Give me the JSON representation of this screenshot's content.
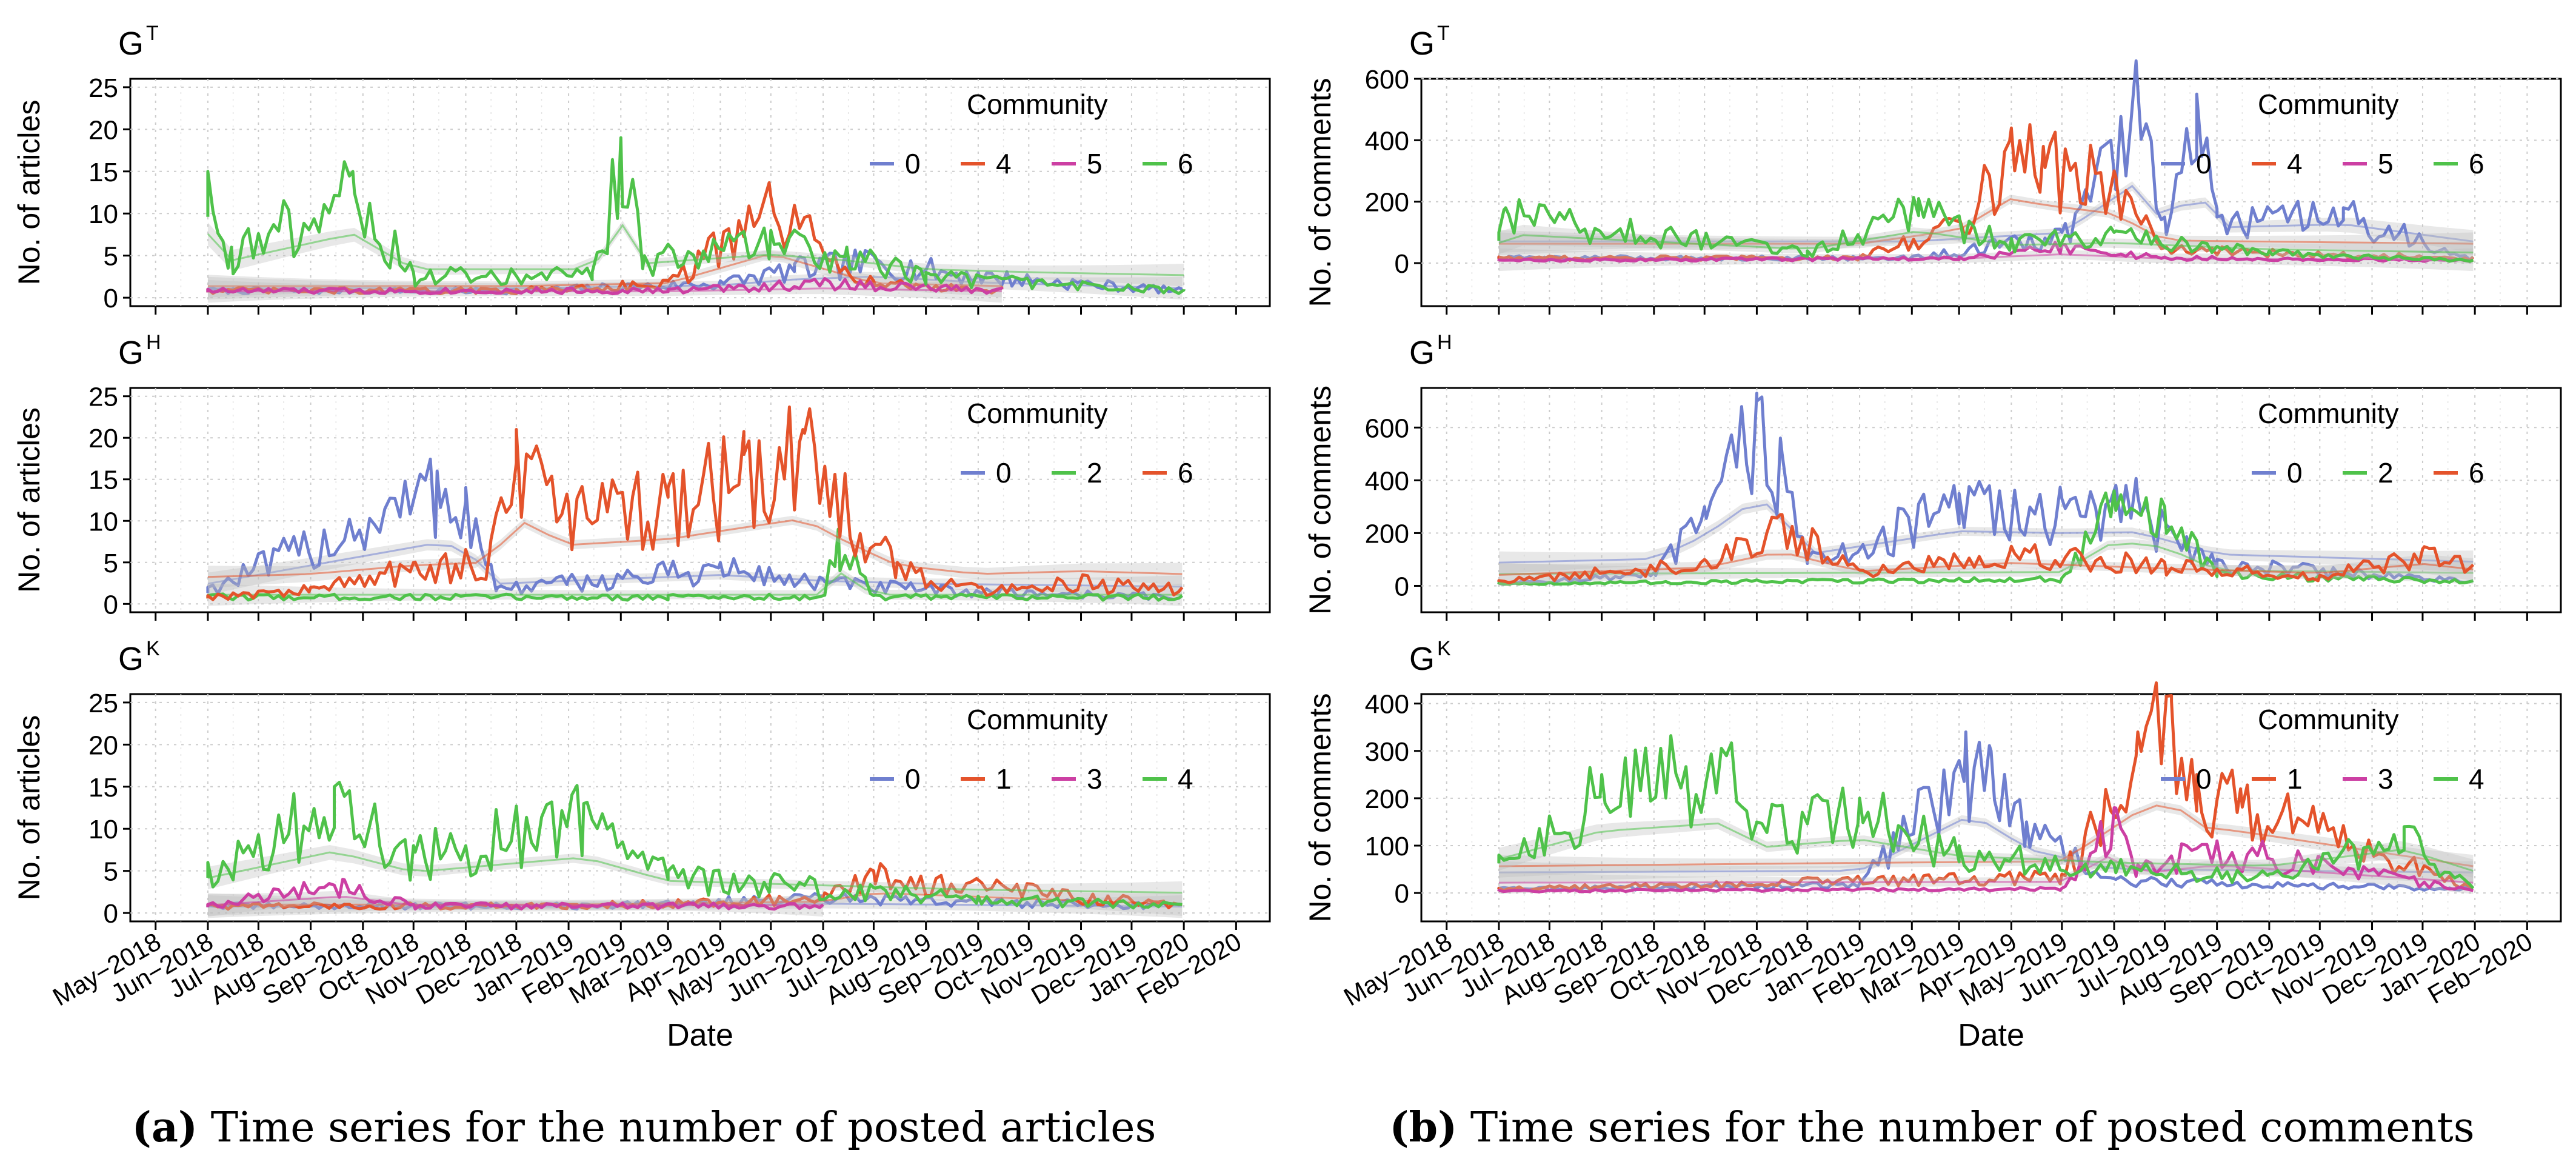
{
  "colors": {
    "blue": "#6f7fcf",
    "red": "#e4532b",
    "magenta": "#cc3fa3",
    "green": "#4fc24a",
    "grid": "#cccccc",
    "band": "#bdbdbd"
  },
  "captions": {
    "a_label": "(a)",
    "a_text": " Time series for the number of posted articles",
    "b_label": "(b)",
    "b_text": " Time series for the number of posted comments"
  },
  "chart_data": [
    {
      "id": "a-GT",
      "type": "line",
      "panel_title": "G",
      "panel_sup": "T",
      "ylabel": "No. of articles",
      "ylim": [
        -1,
        26
      ],
      "yticks": [
        0,
        5,
        10,
        15,
        20,
        25
      ],
      "legend_title": "Community",
      "legend_placement": "top-right",
      "grid": true,
      "series": [
        {
          "name": "0",
          "color": "blue",
          "x": [
            "2018-06-01",
            "2018-12-01",
            "2019-04-01",
            "2019-05-15",
            "2019-07-01",
            "2019-09-01",
            "2019-11-01",
            "2019-12-31"
          ],
          "y": [
            1,
            1,
            2,
            4,
            5,
            3,
            2,
            1
          ]
        },
        {
          "name": "4",
          "color": "red",
          "x": [
            "2018-06-01",
            "2018-12-01",
            "2019-03-01",
            "2019-05-01",
            "2019-07-01",
            "2019-09-15"
          ],
          "y": [
            1,
            1,
            2,
            12,
            2,
            1
          ]
        },
        {
          "name": "5",
          "color": "magenta",
          "x": [
            "2018-06-01",
            "2019-03-01",
            "2019-06-01",
            "2019-09-15"
          ],
          "y": [
            1,
            1,
            2,
            1
          ]
        },
        {
          "name": "6",
          "color": "green",
          "x": [
            "2018-06-01",
            "2018-06-15",
            "2018-08-26",
            "2018-10-01",
            "2019-01-15",
            "2019-02-01",
            "2019-02-15",
            "2019-05-01",
            "2019-06-15",
            "2019-08-01",
            "2019-10-01",
            "2020-01-01"
          ],
          "y": [
            15,
            6,
            15,
            3,
            3,
            19,
            5,
            8,
            6,
            3,
            2,
            1
          ]
        }
      ]
    },
    {
      "id": "a-GH",
      "type": "line",
      "panel_title": "G",
      "panel_sup": "H",
      "ylabel": "No. of articles",
      "ylim": [
        -1,
        26
      ],
      "yticks": [
        0,
        5,
        10,
        15,
        20,
        25
      ],
      "legend_title": "Community",
      "legend_placement": "top-right",
      "grid": true,
      "series": [
        {
          "name": "0",
          "color": "blue",
          "x": [
            "2018-06-01",
            "2018-10-15",
            "2018-11-01",
            "2018-11-20",
            "2019-01-01",
            "2019-04-01",
            "2019-06-01",
            "2019-08-01",
            "2019-12-31"
          ],
          "y": [
            2,
            16,
            14,
            2,
            3,
            5,
            3,
            2,
            1
          ]
        },
        {
          "name": "2",
          "color": "green",
          "x": [
            "2018-06-01",
            "2019-03-01",
            "2019-06-01",
            "2019-06-10",
            "2019-07-01",
            "2019-12-31"
          ],
          "y": [
            1,
            1,
            1,
            9,
            1,
            1
          ]
        },
        {
          "name": "6",
          "color": "red",
          "x": [
            "2018-06-01",
            "2018-08-01",
            "2018-10-01",
            "2018-11-15",
            "2018-12-01",
            "2019-01-01",
            "2019-03-01",
            "2019-04-15",
            "2019-05-20",
            "2019-06-15",
            "2019-07-15",
            "2019-09-01",
            "2019-11-01",
            "2019-12-31"
          ],
          "y": [
            1,
            2,
            5,
            6,
            21,
            12,
            14,
            18,
            21,
            13,
            5,
            2,
            3,
            2
          ]
        }
      ]
    },
    {
      "id": "a-GK",
      "type": "line",
      "panel_title": "G",
      "panel_sup": "K",
      "ylabel": "No. of articles",
      "ylim": [
        -1,
        26
      ],
      "yticks": [
        0,
        5,
        10,
        15,
        20,
        25
      ],
      "legend_title": "Community",
      "legend_placement": "top-right",
      "grid": true,
      "series": [
        {
          "name": "0",
          "color": "blue",
          "x": [
            "2018-06-01",
            "2019-01-01",
            "2019-06-01",
            "2019-12-31"
          ],
          "y": [
            1,
            1,
            2,
            1
          ]
        },
        {
          "name": "1",
          "color": "red",
          "x": [
            "2018-06-01",
            "2019-01-01",
            "2019-06-01",
            "2019-07-01",
            "2019-12-31"
          ],
          "y": [
            1,
            1,
            2,
            5,
            1
          ]
        },
        {
          "name": "3",
          "color": "magenta",
          "x": [
            "2018-06-01",
            "2018-08-20",
            "2018-10-01",
            "2019-06-01"
          ],
          "y": [
            1,
            4,
            1,
            1
          ]
        },
        {
          "name": "4",
          "color": "green",
          "x": [
            "2018-06-01",
            "2018-08-15",
            "2018-10-01",
            "2019-01-10",
            "2019-03-01",
            "2019-05-01",
            "2019-07-01",
            "2019-09-01",
            "2019-12-31"
          ],
          "y": [
            6,
            15,
            8,
            13,
            5,
            4,
            3,
            2,
            1
          ]
        }
      ]
    },
    {
      "id": "b-GT",
      "type": "line",
      "panel_title": "G",
      "panel_sup": "T",
      "ylabel": "No. of comments",
      "ylim": [
        -140,
        600
      ],
      "yticks": [
        0,
        200,
        400,
        600
      ],
      "legend_title": "Community",
      "legend_placement": "top-right",
      "grid": true,
      "series": [
        {
          "name": "0",
          "color": "blue",
          "x": [
            "2018-06-01",
            "2019-02-01",
            "2019-05-01",
            "2019-06-15",
            "2019-07-01",
            "2019-07-20",
            "2019-08-01",
            "2019-10-15",
            "2019-12-31"
          ],
          "y": [
            20,
            20,
            100,
            570,
            150,
            550,
            150,
            180,
            20
          ]
        },
        {
          "name": "4",
          "color": "red",
          "x": [
            "2018-06-01",
            "2019-01-01",
            "2019-03-01",
            "2019-04-01",
            "2019-04-20",
            "2019-06-01",
            "2019-07-01",
            "2019-12-31"
          ],
          "y": [
            20,
            20,
            150,
            440,
            380,
            300,
            50,
            20
          ]
        },
        {
          "name": "5",
          "color": "magenta",
          "x": [
            "2018-06-01",
            "2019-03-01",
            "2019-05-01",
            "2019-07-01",
            "2019-12-31"
          ],
          "y": [
            10,
            20,
            60,
            20,
            10
          ]
        },
        {
          "name": "6",
          "color": "green",
          "x": [
            "2018-06-01",
            "2018-06-05",
            "2018-12-01",
            "2019-02-05",
            "2019-04-01",
            "2019-06-01",
            "2019-09-01",
            "2019-12-31"
          ],
          "y": [
            100,
            180,
            40,
            210,
            80,
            100,
            40,
            10
          ]
        }
      ]
    },
    {
      "id": "b-GH",
      "type": "line",
      "panel_title": "G",
      "panel_sup": "H",
      "ylabel": "No. of comments",
      "ylim": [
        -100,
        750
      ],
      "yticks": [
        0,
        200,
        400,
        600
      ],
      "legend_title": "Community",
      "legend_placement": "top-right",
      "grid": true,
      "series": [
        {
          "name": "0",
          "color": "blue",
          "x": [
            "2018-06-01",
            "2018-09-01",
            "2018-10-01",
            "2018-11-01",
            "2018-11-15",
            "2018-12-01",
            "2019-03-01",
            "2019-05-01",
            "2019-06-15",
            "2019-08-01",
            "2019-12-31"
          ],
          "y": [
            10,
            50,
            300,
            700,
            560,
            100,
            350,
            330,
            340,
            100,
            20
          ]
        },
        {
          "name": "2",
          "color": "green",
          "x": [
            "2018-06-01",
            "2019-05-01",
            "2019-06-01",
            "2019-07-01",
            "2019-08-01",
            "2019-12-31"
          ],
          "y": [
            10,
            30,
            360,
            300,
            50,
            20
          ]
        },
        {
          "name": "6",
          "color": "red",
          "x": [
            "2018-06-01",
            "2018-10-01",
            "2018-11-15",
            "2019-01-01",
            "2019-04-01",
            "2019-07-01",
            "2019-10-01",
            "2019-12-01",
            "2019-12-31"
          ],
          "y": [
            20,
            100,
            270,
            60,
            150,
            90,
            40,
            140,
            80
          ]
        }
      ]
    },
    {
      "id": "b-GK",
      "type": "line",
      "panel_title": "G",
      "panel_sup": "K",
      "ylabel": "No. of comments",
      "ylim": [
        -60,
        420
      ],
      "yticks": [
        0,
        100,
        200,
        300,
        400
      ],
      "legend_title": "Community",
      "legend_placement": "top-right",
      "grid": true,
      "series": [
        {
          "name": "0",
          "color": "blue",
          "x": [
            "2018-06-01",
            "2019-01-01",
            "2019-03-05",
            "2019-03-20",
            "2019-04-10",
            "2019-06-01",
            "2019-12-31"
          ],
          "y": [
            10,
            20,
            340,
            300,
            150,
            30,
            10
          ]
        },
        {
          "name": "1",
          "color": "red",
          "x": [
            "2018-06-01",
            "2019-01-01",
            "2019-05-01",
            "2019-06-15",
            "2019-07-05",
            "2019-07-20",
            "2019-08-15",
            "2019-12-31"
          ],
          "y": [
            10,
            30,
            40,
            340,
            405,
            250,
            220,
            10
          ]
        },
        {
          "name": "3",
          "color": "magenta",
          "x": [
            "2018-06-01",
            "2019-05-01",
            "2019-06-01",
            "2019-06-15",
            "2019-08-01",
            "2019-12-31"
          ],
          "y": [
            5,
            10,
            180,
            60,
            110,
            5
          ]
        },
        {
          "name": "4",
          "color": "green",
          "x": [
            "2018-06-01",
            "2018-08-01",
            "2018-10-15",
            "2018-11-01",
            "2019-01-01",
            "2019-03-01",
            "2019-06-01",
            "2019-09-01",
            "2019-11-20",
            "2019-12-31"
          ],
          "y": [
            80,
            250,
            300,
            150,
            200,
            100,
            60,
            40,
            140,
            10
          ]
        }
      ]
    }
  ],
  "x_axis": {
    "label": "Date",
    "ticks": [
      "May−2018",
      "Jun−2018",
      "Jul−2018",
      "Aug−2018",
      "Sep−2018",
      "Oct−2018",
      "Nov−2018",
      "Dec−2018",
      "Jan−2019",
      "Feb−2019",
      "Mar−2019",
      "Apr−2019",
      "May−2019",
      "Jun−2019",
      "Jul−2019",
      "Aug−2019",
      "Sep−2019",
      "Oct−2019",
      "Nov−2019",
      "Dec−2019",
      "Jan−2020",
      "Feb−2020"
    ]
  }
}
